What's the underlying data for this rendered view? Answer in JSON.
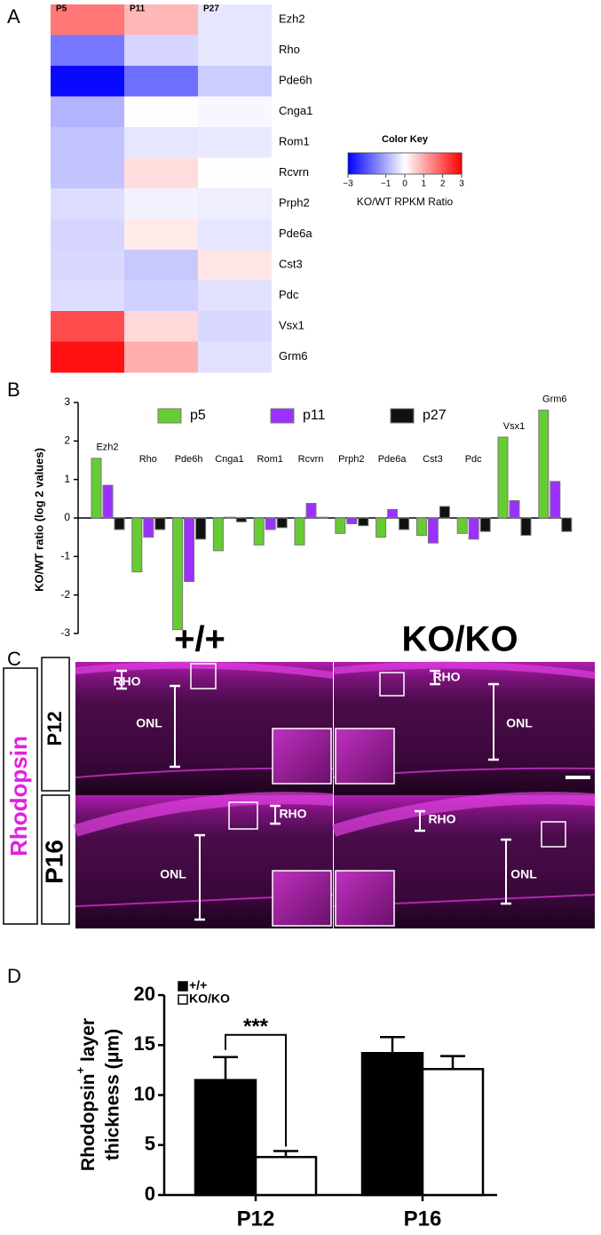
{
  "figure": {
    "panel_labels": [
      "A",
      "B",
      "C",
      "D"
    ]
  },
  "chart_data": [
    {
      "type": "heatmap",
      "columns": [
        "P5",
        "P11",
        "P27"
      ],
      "rows": [
        "Ezh2",
        "Rho",
        "Pde6h",
        "Cnga1",
        "Rom1",
        "Rcvrn",
        "Prph2",
        "Pde6a",
        "Cst3",
        "Pdc",
        "Vsx1",
        "Grm6"
      ],
      "values": [
        [
          1.6,
          0.85,
          -0.3
        ],
        [
          -1.6,
          -0.5,
          -0.3
        ],
        [
          -2.9,
          -1.7,
          -0.6
        ],
        [
          -0.9,
          0.02,
          -0.1
        ],
        [
          -0.7,
          -0.3,
          -0.25
        ],
        [
          -0.7,
          0.4,
          0.02
        ],
        [
          -0.4,
          -0.15,
          -0.2
        ],
        [
          -0.5,
          0.25,
          -0.3
        ],
        [
          -0.45,
          -0.65,
          0.3
        ],
        [
          -0.4,
          -0.55,
          -0.35
        ],
        [
          2.1,
          0.45,
          -0.45
        ],
        [
          2.8,
          0.95,
          -0.35
        ]
      ],
      "colorbar": {
        "title": "Color Key",
        "label": "KO/WT RPKM Ratio",
        "lim": [
          -3,
          3
        ],
        "ticks": [
          {
            "value": -3,
            "label": "−3"
          },
          {
            "value": -1,
            "label": "−1"
          },
          0,
          1,
          2,
          3
        ],
        "colors": [
          "#0000ff",
          "#ffffff",
          "#ff0000"
        ]
      }
    },
    {
      "type": "bar",
      "ylabel": "KO/WT ratio (log 2 values)",
      "categories": [
        "Ezh2",
        "Rho",
        "Pde6h",
        "Cnga1",
        "Rom1",
        "Rcvrn",
        "Prph2",
        "Pde6a",
        "Cst3",
        "Pdc",
        "Vsx1",
        "Grm6"
      ],
      "series": [
        {
          "name": "p5",
          "color": "#66cc33",
          "values": [
            1.55,
            -1.4,
            -2.9,
            -0.85,
            -0.7,
            -0.7,
            -0.4,
            -0.5,
            -0.45,
            -0.4,
            2.1,
            2.8
          ]
        },
        {
          "name": "p11",
          "color": "#9b30ff",
          "values": [
            0.85,
            -0.5,
            -1.65,
            0.02,
            -0.3,
            0.38,
            -0.15,
            0.22,
            -0.65,
            -0.55,
            0.45,
            0.95
          ]
        },
        {
          "name": "p27",
          "color": "#111111",
          "values": [
            -0.3,
            -0.3,
            -0.55,
            -0.1,
            -0.25,
            0.02,
            -0.2,
            -0.3,
            0.3,
            -0.35,
            -0.45,
            -0.35
          ]
        }
      ],
      "ylim": [
        -3,
        3
      ],
      "yticks": [
        -3,
        -2,
        -1,
        0,
        1,
        2,
        3
      ],
      "legend": "top"
    },
    {
      "type": "bar",
      "ylabel": {
        "text": "Rhodopsin",
        "sup": "+",
        "after": " layer",
        "line2": "thickness (μm)"
      },
      "categories": [
        "P12",
        "P16"
      ],
      "series": [
        {
          "name": "+/+",
          "color": "#000000",
          "values": [
            11.5,
            14.2
          ],
          "errors": [
            2.3,
            1.6
          ]
        },
        {
          "name": "KO/KO",
          "color": "#ffffff",
          "values": [
            3.8,
            12.6
          ],
          "errors": [
            0.6,
            1.3
          ]
        }
      ],
      "ylim": [
        0,
        20
      ],
      "yticks": [
        0,
        5,
        10,
        15,
        20
      ],
      "annotation": "***",
      "legend": "top-left"
    }
  ],
  "micrograph": {
    "columns": [
      "+/+",
      "KO/KO"
    ],
    "stain": "Rhodopsin",
    "rows": [
      "P12",
      "P16"
    ],
    "panels": [
      {
        "rho": "RHO",
        "onl": "ONL"
      },
      {
        "rho": "RHO",
        "onl": "ONL"
      },
      {
        "rho": "RHO",
        "onl": "ONL"
      },
      {
        "rho": "RHO",
        "onl": "ONL"
      }
    ]
  }
}
